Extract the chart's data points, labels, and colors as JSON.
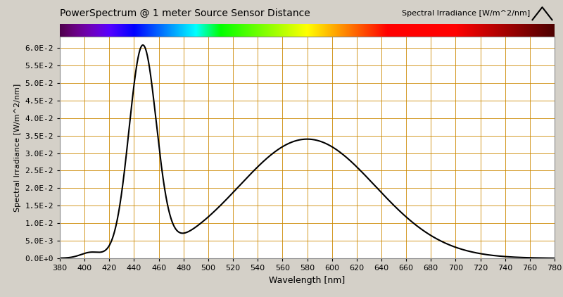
{
  "title": "PowerSpectrum @ 1 meter Source Sensor Distance",
  "legend_label": "Spectral Irradiance [W/m^2/nm]",
  "xlabel": "Wavelength [nm]",
  "ylabel": "Spectral Irradiance [W/m^2/nm]",
  "xlim": [
    380,
    780
  ],
  "ylim": [
    0.0,
    0.0632
  ],
  "yticks": [
    0.0,
    0.005,
    0.01,
    0.015,
    0.02,
    0.025,
    0.03,
    0.035,
    0.04,
    0.045,
    0.05,
    0.055,
    0.06
  ],
  "ytick_labels": [
    "0.0E+0",
    "5.0E-3",
    "1.0E-2",
    "1.5E-2",
    "2.0E-2",
    "2.5E-2",
    "3.0E-2",
    "3.5E-2",
    "4.0E-2",
    "4.5E-2",
    "5.0E-2",
    "5.5E-2",
    "6.0E-2"
  ],
  "xticks": [
    380,
    400,
    420,
    440,
    460,
    480,
    500,
    520,
    540,
    560,
    580,
    600,
    620,
    640,
    660,
    680,
    700,
    720,
    740,
    760,
    780
  ],
  "background_color": "#d4d0c8",
  "plot_bg_color": "#ffffff",
  "grid_color": "#cc8800",
  "line_color": "#000000",
  "line_width": 1.5,
  "fig_width": 8.0,
  "fig_height": 4.22,
  "blue_peak_wavelength": 447,
  "blue_peak_value": 0.059,
  "yellow_peak_wavelength": 580,
  "yellow_peak_value": 0.034,
  "trough_wavelength": 483,
  "trough_value": 0.0063,
  "small_bump_wavelength": 405,
  "small_bump_value": 0.0015
}
